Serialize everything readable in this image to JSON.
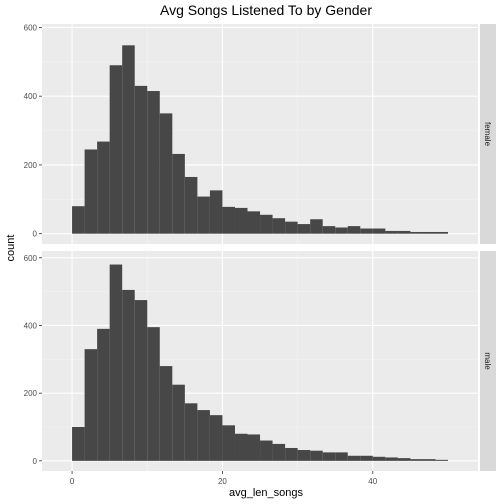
{
  "chart_data": {
    "type": "bar",
    "title": "Avg Songs Listened To by Gender",
    "xlabel": "avg_len_songs",
    "ylabel": "count",
    "xlim": [
      -4,
      54
    ],
    "x_ticks": [
      0,
      20,
      40
    ],
    "x_tick_labels": [
      "0",
      "20",
      "40"
    ],
    "bin_width": 1.667,
    "bin_start": 0,
    "grid": true,
    "colors": {
      "bar": "#474747",
      "panel": "#ebebeb",
      "strip": "#d9d9d9",
      "grid_major": "#ffffff",
      "grid_minor": "#f4f4f4"
    },
    "facets": [
      {
        "name": "female",
        "ylim": [
          -30,
          610
        ],
        "y_ticks": [
          0,
          200,
          400,
          600
        ],
        "y_tick_labels": [
          "0",
          "200",
          "400",
          "600"
        ],
        "values": [
          80,
          245,
          268,
          490,
          548,
          430,
          415,
          350,
          232,
          165,
          108,
          126,
          78,
          75,
          65,
          55,
          45,
          35,
          28,
          42,
          22,
          18,
          22,
          15,
          15,
          8,
          8,
          5,
          5,
          5
        ]
      },
      {
        "name": "male",
        "ylim": [
          -30,
          620
        ],
        "y_ticks": [
          0,
          200,
          400,
          600
        ],
        "y_tick_labels": [
          "0",
          "200",
          "400",
          "600"
        ],
        "values": [
          100,
          330,
          390,
          580,
          505,
          475,
          395,
          280,
          225,
          170,
          150,
          135,
          105,
          80,
          78,
          60,
          50,
          38,
          32,
          30,
          25,
          25,
          15,
          15,
          12,
          10,
          8,
          5,
          5,
          3
        ]
      }
    ]
  }
}
